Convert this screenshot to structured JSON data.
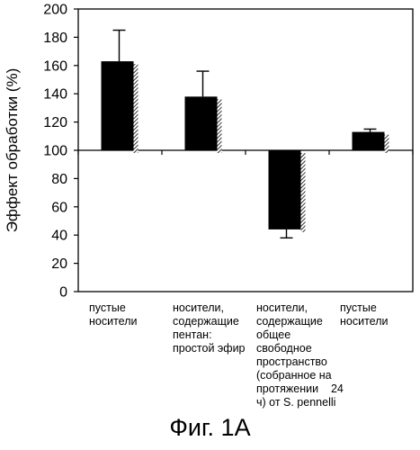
{
  "chart_data": {
    "type": "bar",
    "ylabel": "Эффект обработки (%)",
    "ylim": [
      0,
      200
    ],
    "baseline": 100,
    "yticks": [
      0,
      20,
      40,
      60,
      80,
      100,
      120,
      140,
      160,
      180,
      200
    ],
    "categories": [
      [
        "пустые",
        "носители"
      ],
      [
        "носители,",
        "содержащие",
        "пентан:",
        "простой эфир"
      ],
      [
        "носители,",
        "содержащие",
        "общее",
        "свободное",
        "пространство",
        "(собранное на",
        "протяжении    24",
        "ч) от S. pennelli"
      ],
      [
        "пустые",
        "носители"
      ]
    ],
    "values": [
      163,
      138,
      44,
      113
    ],
    "errors": [
      22,
      18,
      6,
      2
    ],
    "grid": false,
    "legend": "none"
  },
  "caption": "Фиг. 1А",
  "colors": {
    "bar": "#000000",
    "shadow": "#8c8c8c",
    "axis": "#000000"
  }
}
